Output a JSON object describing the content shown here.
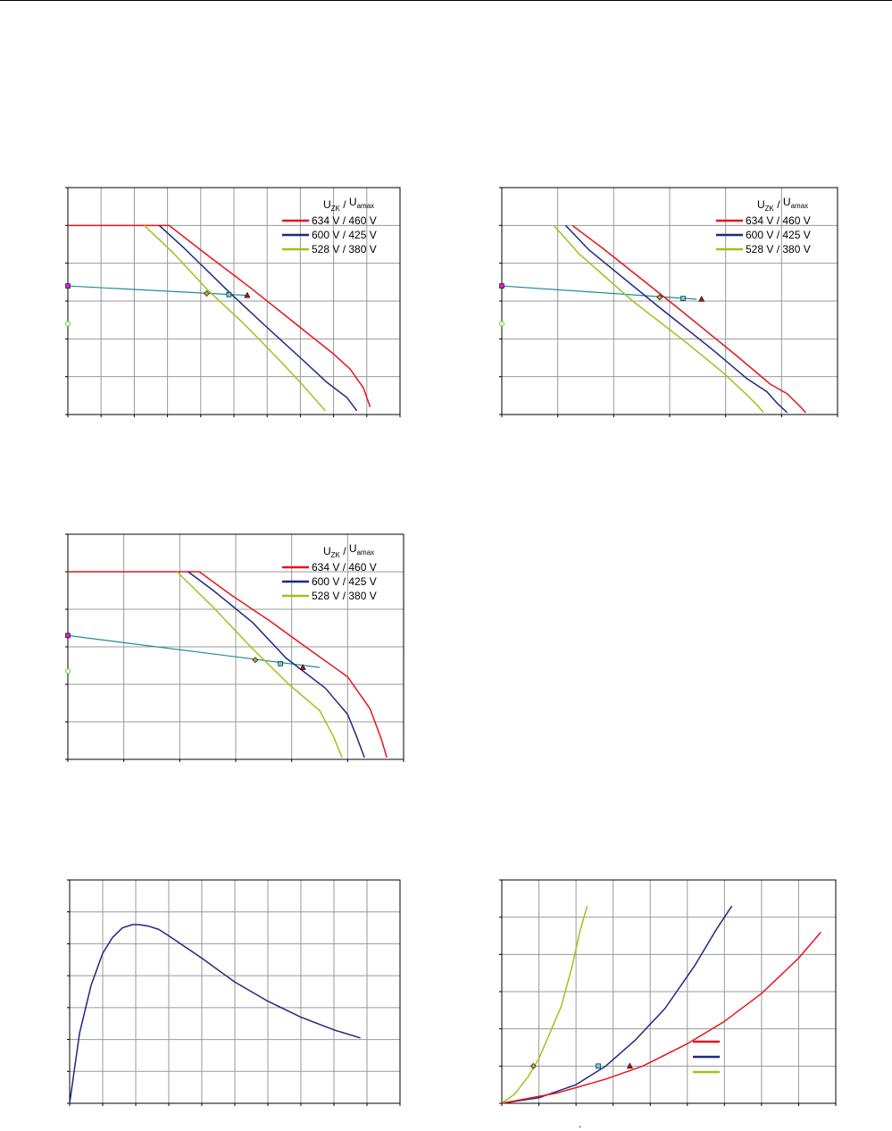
{
  "page": {
    "bottom_mark": "."
  },
  "colors": {
    "red": "#e8141c",
    "navy": "#1b2a80",
    "green": "#9cc41c",
    "teal": "#1a8f99",
    "magenta": "#d61ae0",
    "marker_green": "#58d020",
    "diamond": "#c8a038",
    "square": "#5fd0e0",
    "triangle": "#a01818"
  },
  "legend": {
    "header_u1": "U",
    "header_sub1": "ZK",
    "header_sep": "/",
    "header_u2": "U",
    "header_sub2": "amax",
    "entries": [
      "634 V / 460 V",
      "600 V / 425 V",
      "528 V / 380 V"
    ]
  },
  "chart_data": [
    {
      "type": "line",
      "xlim": [
        0,
        10
      ],
      "ylim": [
        0,
        6
      ],
      "grid": true,
      "legend_position": "top-right",
      "series": [
        {
          "name": "634 V / 460 V",
          "color": "red",
          "x": [
            0,
            3.05,
            4.0,
            5.5,
            7.0,
            8.0,
            8.5,
            8.9,
            9.1
          ],
          "y": [
            5,
            5,
            4.35,
            3.35,
            2.3,
            1.6,
            1.2,
            0.7,
            0.2
          ]
        },
        {
          "name": "600 V / 425 V",
          "color": "navy",
          "x": [
            2.75,
            3.5,
            4.9,
            6.0,
            7.0,
            7.8,
            8.4,
            8.7
          ],
          "y": [
            5,
            4.4,
            3.2,
            2.3,
            1.5,
            0.85,
            0.45,
            0.1
          ]
        },
        {
          "name": "528 V / 380 V",
          "color": "green",
          "x": [
            2.3,
            3.2,
            4.2,
            5.3,
            6.3,
            7.0,
            7.5,
            7.75
          ],
          "y": [
            5,
            4.25,
            3.3,
            2.4,
            1.5,
            0.85,
            0.35,
            0.1
          ]
        }
      ],
      "op_line": {
        "x": [
          0,
          5.4
        ],
        "y": [
          3.4,
          3.15
        ]
      },
      "markers": [
        {
          "shape": "square",
          "color": "magenta",
          "x": 0,
          "y": 3.4
        },
        {
          "shape": "circle",
          "color": "marker_green",
          "x": 0,
          "y": 2.4
        },
        {
          "shape": "diamond",
          "color": "diamond",
          "x": 4.18,
          "y": 3.2
        },
        {
          "shape": "square",
          "color": "square",
          "x": 4.85,
          "y": 3.17
        },
        {
          "shape": "triangle",
          "color": "triangle",
          "x": 5.4,
          "y": 3.15
        }
      ]
    },
    {
      "type": "line",
      "xlim": [
        0,
        10
      ],
      "ylim": [
        0,
        6
      ],
      "grid": true,
      "legend_position": "top-right",
      "series": [
        {
          "name": "634 V / 460 V",
          "color": "red",
          "x": [
            2.1,
            3.0,
            5.2,
            7.0,
            8.0,
            8.5,
            8.9,
            9.05
          ],
          "y": [
            5,
            4.4,
            2.85,
            1.55,
            0.8,
            0.55,
            0.2,
            0.05
          ]
        },
        {
          "name": "600 V / 425 V",
          "color": "navy",
          "x": [
            1.9,
            2.6,
            4.6,
            6.3,
            7.3,
            7.9,
            8.2,
            8.5
          ],
          "y": [
            5,
            4.35,
            2.9,
            1.7,
            0.95,
            0.6,
            0.3,
            0.05
          ]
        },
        {
          "name": "528 V / 380 V",
          "color": "green",
          "x": [
            1.55,
            2.3,
            3.9,
            5.5,
            6.6,
            7.2,
            7.55,
            7.8
          ],
          "y": [
            5,
            4.25,
            3.0,
            1.9,
            1.1,
            0.6,
            0.3,
            0.05
          ]
        }
      ],
      "op_line": {
        "x": [
          0,
          5.8
        ],
        "y": [
          3.4,
          3.05
        ]
      },
      "markers": [
        {
          "shape": "square",
          "color": "magenta",
          "x": 0,
          "y": 3.4
        },
        {
          "shape": "circle",
          "color": "marker_green",
          "x": 0,
          "y": 2.4
        },
        {
          "shape": "diamond",
          "color": "diamond",
          "x": 4.7,
          "y": 3.1
        },
        {
          "shape": "square",
          "color": "square",
          "x": 5.4,
          "y": 3.07
        },
        {
          "shape": "triangle",
          "color": "triangle",
          "x": 5.95,
          "y": 3.05
        }
      ]
    },
    {
      "type": "line",
      "xlim": [
        0,
        6
      ],
      "ylim": [
        0,
        6
      ],
      "grid": true,
      "legend_position": "top-right",
      "series": [
        {
          "name": "634 V / 460 V",
          "color": "red",
          "x": [
            0,
            2.35,
            2.9,
            3.6,
            4.2,
            5.0,
            5.4,
            5.6,
            5.7
          ],
          "y": [
            5,
            5,
            4.4,
            3.7,
            3.05,
            2.2,
            1.35,
            0.55,
            0.05
          ]
        },
        {
          "name": "600 V / 425 V",
          "color": "navy",
          "x": [
            2.15,
            2.6,
            3.3,
            3.9,
            4.6,
            5.0,
            5.15,
            5.3
          ],
          "y": [
            5,
            4.5,
            3.65,
            2.7,
            1.9,
            1.2,
            0.65,
            0.05
          ]
        },
        {
          "name": "528 V / 380 V",
          "color": "green",
          "x": [
            1.95,
            2.6,
            3.3,
            3.95,
            4.5,
            4.75,
            4.9
          ],
          "y": [
            5,
            4.05,
            2.95,
            2.0,
            1.3,
            0.6,
            0.05
          ]
        }
      ],
      "op_line": {
        "x": [
          0,
          4.5
        ],
        "y": [
          3.3,
          2.45
        ]
      },
      "markers": [
        {
          "shape": "square",
          "color": "magenta",
          "x": 0,
          "y": 3.3
        },
        {
          "shape": "circle",
          "color": "marker_green",
          "x": 0,
          "y": 2.35
        },
        {
          "shape": "diamond",
          "color": "diamond",
          "x": 3.35,
          "y": 2.65
        },
        {
          "shape": "square",
          "color": "square",
          "x": 3.8,
          "y": 2.55
        },
        {
          "shape": "triangle",
          "color": "triangle",
          "x": 4.2,
          "y": 2.45
        }
      ]
    },
    {
      "type": "line",
      "xlim": [
        0,
        10
      ],
      "ylim": [
        0,
        7
      ],
      "grid": true,
      "series": [
        {
          "color": "navy",
          "x": [
            0,
            0.3,
            0.65,
            1.0,
            1.3,
            1.6,
            1.9,
            2.1,
            2.4,
            2.7,
            3.0,
            3.5,
            4.0,
            5.0,
            6.0,
            7.0,
            8.0,
            8.8
          ],
          "y": [
            0,
            2.2,
            3.7,
            4.7,
            5.2,
            5.5,
            5.6,
            5.6,
            5.55,
            5.45,
            5.25,
            4.9,
            4.55,
            3.8,
            3.2,
            2.7,
            2.3,
            2.05
          ]
        }
      ]
    },
    {
      "type": "line",
      "xlim": [
        0,
        9
      ],
      "ylim": [
        0,
        6
      ],
      "grid": true,
      "series": [
        {
          "color": "green",
          "x": [
            0,
            0.35,
            0.7,
            1.0,
            1.3,
            1.6,
            1.9,
            2.1,
            2.3
          ],
          "y": [
            0,
            0.25,
            0.7,
            1.2,
            1.9,
            2.6,
            3.7,
            4.6,
            5.3
          ]
        },
        {
          "color": "navy",
          "x": [
            0,
            1.0,
            2.0,
            2.8,
            3.6,
            4.4,
            5.2,
            5.8,
            6.2
          ],
          "y": [
            0,
            0.15,
            0.5,
            1.0,
            1.7,
            2.55,
            3.7,
            4.7,
            5.3
          ]
        },
        {
          "color": "red",
          "x": [
            0,
            1.5,
            2.8,
            3.8,
            5.0,
            6.0,
            7.0,
            8.0,
            8.6
          ],
          "y": [
            0,
            0.28,
            0.65,
            1.0,
            1.6,
            2.2,
            2.95,
            3.9,
            4.6
          ]
        }
      ],
      "markers": [
        {
          "shape": "diamond",
          "color": "diamond",
          "x": 0.85,
          "y": 1.0
        },
        {
          "shape": "square",
          "color": "square",
          "x": 2.6,
          "y": 1.0
        },
        {
          "shape": "triangle",
          "color": "triangle",
          "x": 3.45,
          "y": 1.0
        }
      ],
      "legend_swatches": [
        "red",
        "navy",
        "green"
      ]
    }
  ]
}
